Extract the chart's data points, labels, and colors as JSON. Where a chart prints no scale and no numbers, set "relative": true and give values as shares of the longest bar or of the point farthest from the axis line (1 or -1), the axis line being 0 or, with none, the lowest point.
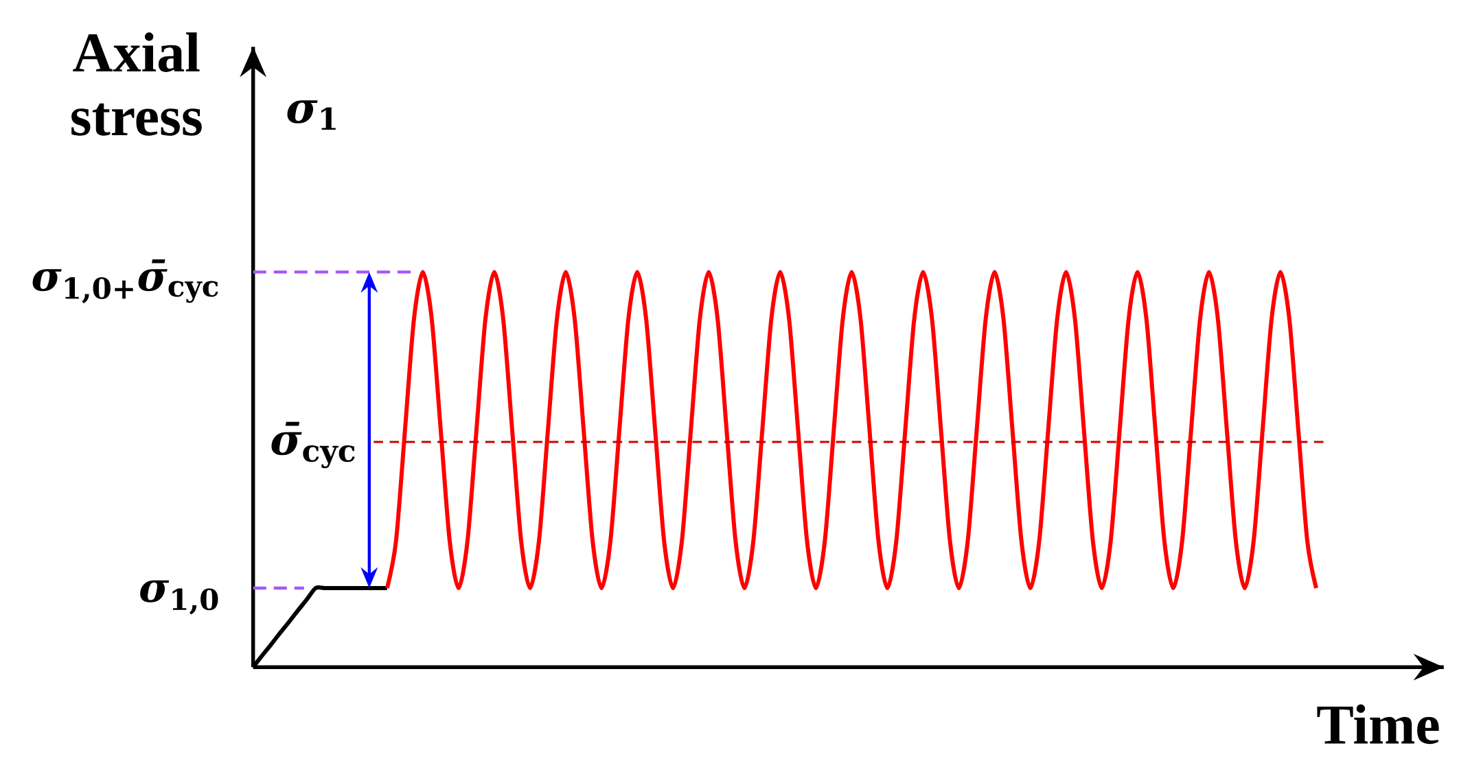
{
  "chart_data": {
    "type": "line",
    "relative": true,
    "xlabel": "Time",
    "ylabel": "Axial stress",
    "annotations": [
      "*σ*$_{1}$",
      "*σ̄*$_{cyc}$"
    ],
    "categories": [
      null,
      null,
      null,
      null,
      null,
      null,
      null,
      null,
      null,
      null,
      null,
      null,
      null,
      null,
      null,
      null,
      null,
      null,
      null,
      null,
      null,
      null,
      null,
      null,
      null,
      null,
      null,
      null,
      null,
      null,
      null,
      null,
      null,
      null,
      null,
      null,
      null,
      null,
      null,
      null,
      null,
      null,
      null,
      null,
      null,
      null,
      null,
      null,
      null,
      null,
      null,
      null,
      null,
      null,
      null,
      null,
      null,
      null,
      null,
      null,
      null,
      null,
      null,
      null,
      null,
      null,
      null,
      null,
      null,
      null,
      null,
      null,
      null,
      null,
      null,
      null,
      null,
      null,
      null,
      null,
      null,
      null,
      null,
      null,
      null,
      null,
      null,
      null,
      null,
      null,
      null,
      null,
      null,
      null,
      null,
      null,
      null,
      null,
      null,
      null,
      null,
      null,
      null,
      null,
      null,
      null,
      null,
      null,
      null,
      null,
      null,
      null,
      null,
      null,
      null,
      null,
      null,
      null,
      null,
      null
    ],
    "series": [
      {
        "color": "#000000",
        "values": [
          0,
          0.029,
          0.057,
          0.086,
          0.114,
          0.143,
          0.171,
          0.2,
          0.2,
          0.2,
          0.2,
          0.2,
          0.2,
          0.2,
          0.2,
          0.2,
          null,
          null,
          null,
          null,
          null,
          null,
          null,
          null,
          null,
          null,
          null,
          null,
          null,
          null,
          null,
          null,
          null,
          null,
          null,
          null,
          null,
          null,
          null,
          null,
          null,
          null,
          null,
          null,
          null,
          null,
          null,
          null,
          null,
          null,
          null,
          null,
          null,
          null,
          null,
          null,
          null,
          null,
          null,
          null,
          null,
          null,
          null,
          null,
          null,
          null,
          null,
          null,
          null,
          null,
          null,
          null,
          null,
          null,
          null,
          null,
          null,
          null,
          null,
          null,
          null,
          null,
          null,
          null,
          null,
          null,
          null,
          null,
          null,
          null,
          null,
          null,
          null,
          null,
          null,
          null,
          null,
          null,
          null,
          null,
          null,
          null,
          null,
          null,
          null,
          null,
          null,
          null,
          null,
          null,
          null,
          null,
          null,
          null,
          null,
          null,
          null,
          null,
          null,
          null
        ]
      },
      {
        "color": "#ff0000",
        "values": [
          null,
          null,
          null,
          null,
          null,
          null,
          null,
          null,
          null,
          null,
          null,
          null,
          null,
          null,
          null,
          0.2,
          0.32,
          0.6,
          0.88,
          1,
          0.88,
          0.6,
          0.32,
          0.2,
          0.32,
          0.6,
          0.88,
          1,
          0.88,
          0.6,
          0.32,
          0.2,
          0.32,
          0.6,
          0.88,
          1,
          0.88,
          0.6,
          0.32,
          0.2,
          0.32,
          0.6,
          0.88,
          1,
          0.88,
          0.6,
          0.32,
          0.2,
          0.32,
          0.6,
          0.88,
          1,
          0.88,
          0.6,
          0.32,
          0.2,
          0.32,
          0.6,
          0.88,
          1,
          0.88,
          0.6,
          0.32,
          0.2,
          0.32,
          0.6,
          0.88,
          1,
          0.88,
          0.6,
          0.32,
          0.2,
          0.32,
          0.6,
          0.88,
          1,
          0.88,
          0.6,
          0.32,
          0.2,
          0.32,
          0.6,
          0.88,
          1,
          0.88,
          0.6,
          0.32,
          0.2,
          0.32,
          0.6,
          0.88,
          1,
          0.88,
          0.6,
          0.32,
          0.2,
          0.32,
          0.6,
          0.88,
          1,
          0.88,
          0.6,
          0.32,
          0.2,
          0.32,
          0.6,
          0.88,
          1,
          0.88,
          0.6,
          0.32,
          0.2,
          0.32,
          0.6,
          0.88,
          1,
          0.88,
          0.6,
          0.32,
          0.2
        ]
      }
    ],
    "ref_lines": [
      {
        "axis": "y",
        "value": 1,
        "label": "*σ*$_{1,0+}$*σ̄*$_{cyc}$",
        "color": "#a855f7",
        "line_style": "dashed"
      },
      {
        "axis": "y",
        "value": 0.2,
        "label": "*σ*$_{1,0}$",
        "color": "#a855f7",
        "line_style": "dashed"
      },
      {
        "axis": "y",
        "value": 0.57,
        "color": "#cc0000",
        "line_style": "dashed"
      }
    ]
  }
}
